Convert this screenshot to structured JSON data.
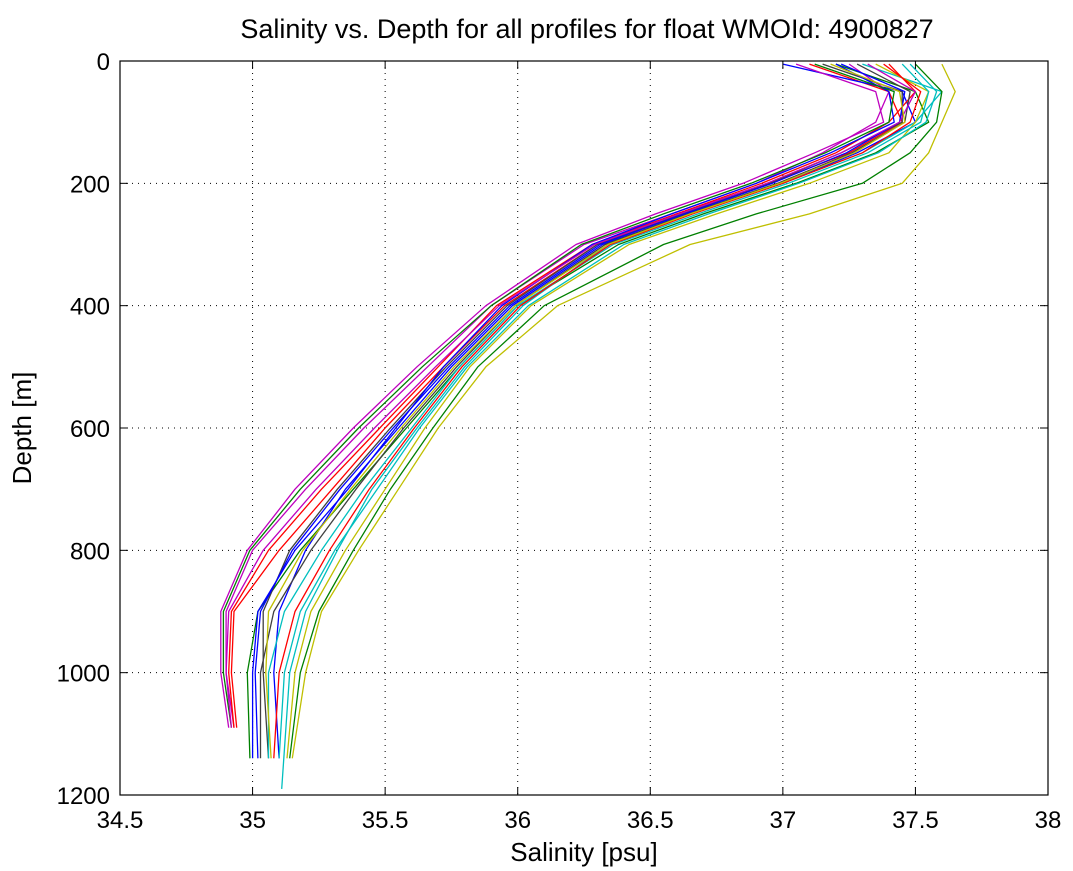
{
  "chart_data": {
    "type": "line",
    "title": "Salinity vs. Depth for all profiles for float WMOId: 4900827",
    "xlabel": "Salinity [psu]",
    "ylabel": "Depth [m]",
    "xlim": [
      34.5,
      38
    ],
    "ylim": [
      0,
      1200
    ],
    "y_reversed": true,
    "grid": "dotted",
    "xticks": [
      34.5,
      35,
      35.5,
      36,
      36.5,
      37,
      37.5,
      38
    ],
    "xtick_labels": [
      "34.5",
      "35",
      "35.5",
      "36",
      "36.5",
      "37",
      "37.5",
      "38"
    ],
    "yticks": [
      0,
      200,
      400,
      600,
      800,
      1000,
      1200
    ],
    "ytick_labels": [
      "0",
      "200",
      "400",
      "600",
      "800",
      "1000",
      "1200"
    ],
    "colors": [
      "#ff0000",
      "#008000",
      "#0000ff",
      "#00bfbf",
      "#bf00bf",
      "#bfbf00",
      "#404040"
    ],
    "series": [
      {
        "depth": [
          5,
          50,
          100,
          150,
          200,
          250,
          300,
          400,
          500,
          600,
          700,
          800,
          900,
          1000,
          1090
        ],
        "salinity": [
          37.1,
          37.4,
          37.45,
          37.25,
          36.95,
          36.6,
          36.3,
          35.95,
          35.72,
          35.5,
          35.3,
          35.1,
          34.93,
          34.92,
          34.94
        ]
      },
      {
        "depth": [
          5,
          50,
          100,
          150,
          200,
          250,
          300,
          400,
          500,
          600,
          700,
          800,
          900,
          1000,
          1140
        ],
        "salinity": [
          37.2,
          37.5,
          37.55,
          37.35,
          37.05,
          36.7,
          36.38,
          36.0,
          35.78,
          35.58,
          35.38,
          35.18,
          35.02,
          34.98,
          34.99
        ]
      },
      {
        "depth": [
          5,
          50,
          100,
          150,
          200,
          250,
          300,
          400,
          500,
          600,
          700,
          800,
          900,
          1000,
          1140
        ],
        "salinity": [
          37.0,
          37.45,
          37.5,
          37.28,
          37.0,
          36.65,
          36.32,
          35.98,
          35.75,
          35.55,
          35.35,
          35.2,
          35.1,
          35.08,
          35.1
        ]
      },
      {
        "depth": [
          5,
          50,
          100,
          150,
          200,
          250,
          300,
          400,
          500,
          600,
          700,
          800,
          900,
          1000,
          1190
        ],
        "salinity": [
          37.3,
          37.6,
          37.5,
          37.3,
          37.0,
          36.64,
          36.34,
          36.02,
          35.8,
          35.62,
          35.45,
          35.32,
          35.2,
          35.14,
          35.11
        ]
      },
      {
        "depth": [
          5,
          50,
          100,
          150,
          200,
          250,
          300,
          400,
          500,
          600,
          700,
          800,
          900,
          1000,
          1090
        ],
        "salinity": [
          37.25,
          37.4,
          37.35,
          37.15,
          36.9,
          36.58,
          36.25,
          35.9,
          35.66,
          35.42,
          35.2,
          35.0,
          34.9,
          34.9,
          34.93
        ]
      },
      {
        "depth": [
          5,
          50,
          100,
          150,
          200,
          250,
          300,
          400,
          500,
          600,
          700,
          800,
          900,
          1000,
          1140
        ],
        "salinity": [
          37.35,
          37.55,
          37.5,
          37.4,
          37.1,
          36.75,
          36.42,
          36.05,
          35.82,
          35.65,
          35.5,
          35.35,
          35.22,
          35.16,
          35.13
        ]
      },
      {
        "depth": [
          5,
          50,
          100,
          150,
          200,
          250,
          300,
          400,
          500,
          600,
          700,
          800,
          900,
          1000,
          1140
        ],
        "salinity": [
          37.15,
          37.45,
          37.45,
          37.22,
          36.95,
          36.62,
          36.3,
          35.96,
          35.73,
          35.52,
          35.32,
          35.14,
          35.04,
          35.04,
          35.06
        ]
      },
      {
        "depth": [
          5,
          50,
          100,
          150,
          200,
          250,
          300,
          400,
          500,
          600,
          700,
          800,
          900,
          1000,
          1090
        ],
        "salinity": [
          37.4,
          37.5,
          37.4,
          37.2,
          36.92,
          36.6,
          36.28,
          35.92,
          35.7,
          35.48,
          35.26,
          35.06,
          34.92,
          34.91,
          34.93
        ]
      },
      {
        "depth": [
          5,
          50,
          100,
          150,
          200,
          250,
          300,
          400,
          500,
          600,
          700,
          800,
          900,
          1000,
          1140
        ],
        "salinity": [
          37.5,
          37.6,
          37.58,
          37.48,
          37.3,
          36.9,
          36.55,
          36.1,
          35.85,
          35.68,
          35.52,
          35.38,
          35.25,
          35.18,
          35.14
        ]
      },
      {
        "depth": [
          5,
          50,
          100,
          150,
          200,
          250,
          300,
          400,
          500,
          600,
          700,
          800,
          900,
          1000,
          1140
        ],
        "salinity": [
          37.2,
          37.4,
          37.42,
          37.18,
          36.9,
          36.58,
          36.28,
          35.94,
          35.72,
          35.54,
          35.36,
          35.16,
          35.02,
          35.0,
          35.0
        ]
      },
      {
        "depth": [
          5,
          50,
          100,
          150,
          200,
          250,
          300,
          400,
          500,
          600,
          700,
          800,
          900,
          1000,
          1140
        ],
        "salinity": [
          37.45,
          37.55,
          37.52,
          37.32,
          37.02,
          36.68,
          36.36,
          36.0,
          35.78,
          35.6,
          35.42,
          35.26,
          35.12,
          35.06,
          35.06
        ]
      },
      {
        "depth": [
          5,
          50,
          100,
          150,
          200,
          250,
          300,
          400,
          500,
          600,
          700,
          800,
          900,
          1000,
          1090
        ],
        "salinity": [
          37.05,
          37.35,
          37.38,
          37.12,
          36.85,
          36.52,
          36.22,
          35.88,
          35.62,
          35.38,
          35.16,
          34.98,
          34.88,
          34.88,
          34.91
        ]
      },
      {
        "depth": [
          5,
          50,
          100,
          150,
          200,
          250,
          300,
          400,
          500,
          600,
          700,
          800,
          900,
          1000,
          1140
        ],
        "salinity": [
          37.6,
          37.65,
          37.6,
          37.55,
          37.45,
          37.1,
          36.65,
          36.15,
          35.88,
          35.7,
          35.55,
          35.4,
          35.26,
          35.2,
          35.15
        ]
      },
      {
        "depth": [
          5,
          50,
          100,
          150,
          200,
          250,
          300,
          400,
          500,
          600,
          700,
          800,
          900,
          1000,
          1140
        ],
        "salinity": [
          37.28,
          37.48,
          37.46,
          37.26,
          36.98,
          36.64,
          36.33,
          35.99,
          35.77,
          35.57,
          35.39,
          35.22,
          35.08,
          35.03,
          35.03
        ]
      },
      {
        "depth": [
          5,
          50,
          100,
          150,
          200,
          250,
          300,
          400,
          500,
          600,
          700,
          800,
          900,
          1000,
          1140
        ],
        "salinity": [
          37.38,
          37.52,
          37.48,
          37.3,
          37.0,
          36.66,
          36.35,
          36.01,
          35.79,
          35.61,
          35.44,
          35.29,
          35.16,
          35.1,
          35.08
        ]
      },
      {
        "depth": [
          5,
          50,
          100,
          150,
          200,
          250,
          300,
          400,
          500,
          600,
          700,
          800,
          900,
          1000,
          1090
        ],
        "salinity": [
          37.12,
          37.42,
          37.4,
          37.16,
          36.88,
          36.55,
          36.24,
          35.9,
          35.64,
          35.4,
          35.18,
          34.99,
          34.89,
          34.89,
          34.92
        ]
      },
      {
        "depth": [
          5,
          50,
          100,
          150,
          200,
          250,
          300,
          400,
          500,
          600,
          700,
          800,
          900,
          1000,
          1140
        ],
        "salinity": [
          37.22,
          37.46,
          37.44,
          37.24,
          36.96,
          36.63,
          36.31,
          35.97,
          35.74,
          35.53,
          35.33,
          35.15,
          35.03,
          35.01,
          35.02
        ]
      },
      {
        "depth": [
          5,
          50,
          100,
          150,
          200,
          250,
          300,
          400,
          500,
          600,
          700,
          800,
          900,
          1000,
          1140
        ],
        "salinity": [
          37.48,
          37.58,
          37.54,
          37.36,
          37.06,
          36.72,
          36.4,
          36.04,
          35.81,
          35.63,
          35.47,
          35.31,
          35.18,
          35.12,
          35.1
        ]
      },
      {
        "depth": [
          5,
          50,
          100,
          150,
          200,
          250,
          300,
          400,
          500,
          600,
          700,
          800,
          900,
          1000,
          1090
        ],
        "salinity": [
          37.32,
          37.5,
          37.44,
          37.22,
          36.94,
          36.61,
          36.29,
          35.93,
          35.69,
          35.46,
          35.24,
          35.04,
          34.91,
          34.9,
          34.92
        ]
      },
      {
        "depth": [
          5,
          50,
          100,
          150,
          200,
          250,
          300,
          400,
          500,
          600,
          700,
          800,
          900,
          1000,
          1140
        ],
        "salinity": [
          37.18,
          37.44,
          37.46,
          37.27,
          36.99,
          36.65,
          36.34,
          35.99,
          35.76,
          35.56,
          35.37,
          35.19,
          35.06,
          35.05,
          35.07
        ]
      }
    ]
  }
}
